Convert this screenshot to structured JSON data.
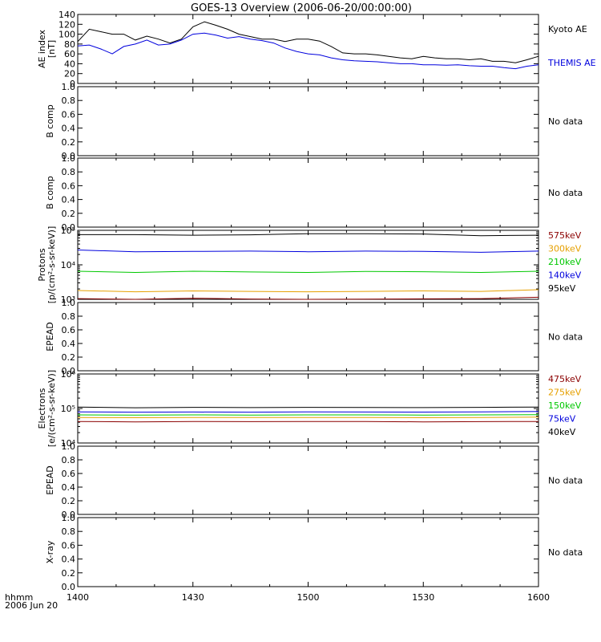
{
  "title": "GOES-13 Overview (2006-06-20/00:00:00)",
  "time_axis": {
    "ticks": [
      "1400",
      "1430",
      "1500",
      "1530",
      "1600"
    ],
    "corner_label": "hhmm",
    "corner_date": "2006 Jun 20"
  },
  "chart_data": [
    {
      "type": "line",
      "panel": "ae",
      "ylabel": [
        "AE index",
        "[nT]"
      ],
      "ylim": [
        0,
        140
      ],
      "yticks": [
        "0",
        "20",
        "40",
        "60",
        "80",
        "100",
        "120",
        "140"
      ],
      "x_minutes": [
        0,
        3,
        6,
        9,
        12,
        15,
        18,
        21,
        24,
        27,
        30,
        33,
        36,
        39,
        42,
        45,
        48,
        51,
        54,
        57,
        60,
        63,
        66,
        69,
        72,
        75,
        78,
        81,
        84,
        87,
        90,
        93,
        96,
        99,
        102,
        105,
        108,
        111,
        114,
        117,
        120
      ],
      "series": [
        {
          "name": "Kyoto AE",
          "color": "#000000",
          "values": [
            85,
            110,
            105,
            100,
            100,
            88,
            96,
            90,
            82,
            90,
            115,
            125,
            118,
            110,
            100,
            95,
            90,
            90,
            85,
            90,
            90,
            86,
            75,
            62,
            60,
            60,
            58,
            55,
            52,
            50,
            55,
            52,
            50,
            50,
            48,
            50,
            45,
            45,
            42,
            48,
            55
          ]
        },
        {
          "name": "THEMIS AE",
          "color": "#0000dd",
          "values": [
            76,
            78,
            70,
            60,
            75,
            80,
            88,
            78,
            80,
            88,
            100,
            102,
            98,
            92,
            95,
            90,
            87,
            82,
            72,
            65,
            60,
            58,
            52,
            48,
            46,
            45,
            44,
            42,
            40,
            40,
            38,
            38,
            37,
            38,
            36,
            35,
            35,
            32,
            30,
            35,
            38
          ]
        }
      ]
    },
    {
      "type": "line",
      "panel": "bcomp1",
      "ylabel": [
        "B comp"
      ],
      "ylim": [
        0,
        1
      ],
      "yticks": [
        "0.0",
        "0.2",
        "0.4",
        "0.6",
        "0.8",
        "1.0"
      ],
      "note": "No data"
    },
    {
      "type": "line",
      "panel": "bcomp2",
      "ylabel": [
        "B comp"
      ],
      "ylim": [
        0,
        1
      ],
      "yticks": [
        "0.0",
        "0.2",
        "0.4",
        "0.6",
        "0.8",
        "1.0"
      ],
      "note": "No data"
    },
    {
      "type": "line",
      "panel": "protons",
      "ylabel": [
        "Protons",
        "[p/(cm²-s-sr-keV)]"
      ],
      "yscale": "log",
      "ylim": [
        1000,
        100000
      ],
      "yticks": [
        "10³",
        "10⁴",
        "10⁵"
      ],
      "x_minutes": [
        0,
        15,
        30,
        45,
        60,
        75,
        90,
        105,
        120
      ],
      "series": [
        {
          "name": "575keV",
          "color": "#8b0000",
          "values": [
            1050,
            1000,
            1080,
            1020,
            1000,
            1010,
            1030,
            1050,
            1150
          ]
        },
        {
          "name": "300keV",
          "color": "#e6a000",
          "values": [
            1800,
            1650,
            1750,
            1700,
            1650,
            1700,
            1750,
            1700,
            1900
          ]
        },
        {
          "name": "210keV",
          "color": "#00c800",
          "values": [
            6500,
            6000,
            6500,
            6200,
            6000,
            6400,
            6300,
            6000,
            6500
          ]
        },
        {
          "name": "140keV",
          "color": "#0000dd",
          "values": [
            27000,
            24000,
            24500,
            25000,
            24000,
            25000,
            24500,
            23000,
            25000
          ]
        },
        {
          "name": "95keV",
          "color": "#000000",
          "values": [
            75000,
            75000,
            72000,
            74000,
            80000,
            80000,
            78000,
            70000,
            72000
          ]
        }
      ]
    },
    {
      "type": "line",
      "panel": "epead1",
      "ylabel": [
        "EPEAD"
      ],
      "ylim": [
        0,
        1
      ],
      "yticks": [
        "0.0",
        "0.2",
        "0.4",
        "0.6",
        "0.8",
        "1.0"
      ],
      "note": "No data"
    },
    {
      "type": "line",
      "panel": "electrons",
      "ylabel": [
        "Electrons",
        "[e/(cm²-s-sr-keV)]"
      ],
      "yscale": "log",
      "ylim": [
        10000,
        1000000
      ],
      "yticks": [
        "10⁴",
        "10⁵",
        "10⁶"
      ],
      "x_minutes": [
        0,
        15,
        30,
        45,
        60,
        75,
        90,
        105,
        120
      ],
      "series": [
        {
          "name": "475keV",
          "color": "#8b0000",
          "values": [
            42000,
            41000,
            42000,
            41500,
            42000,
            42000,
            41000,
            41500,
            42000
          ]
        },
        {
          "name": "275keV",
          "color": "#e6a000",
          "values": [
            55000,
            54000,
            55000,
            54500,
            55000,
            55000,
            54000,
            55000,
            56000
          ]
        },
        {
          "name": "150keV",
          "color": "#00c800",
          "values": [
            65000,
            64000,
            65000,
            64000,
            65000,
            65000,
            64500,
            65000,
            66000
          ]
        },
        {
          "name": "75keV",
          "color": "#0000dd",
          "values": [
            80000,
            78000,
            79000,
            78000,
            80000,
            79000,
            78500,
            80000,
            82000
          ]
        },
        {
          "name": "40keV",
          "color": "#000000",
          "values": [
            110000,
            105000,
            108000,
            106000,
            108000,
            107000,
            106000,
            108000,
            110000
          ]
        }
      ]
    },
    {
      "type": "line",
      "panel": "epead2",
      "ylabel": [
        "EPEAD"
      ],
      "ylim": [
        0,
        1
      ],
      "yticks": [
        "0.0",
        "0.2",
        "0.4",
        "0.6",
        "0.8",
        "1.0"
      ],
      "note": "No data"
    },
    {
      "type": "line",
      "panel": "xray",
      "ylabel": [
        "X-ray"
      ],
      "ylim": [
        0,
        1
      ],
      "yticks": [
        "0.0",
        "0.2",
        "0.4",
        "0.6",
        "0.8",
        "1.0"
      ],
      "note": "No data"
    }
  ]
}
